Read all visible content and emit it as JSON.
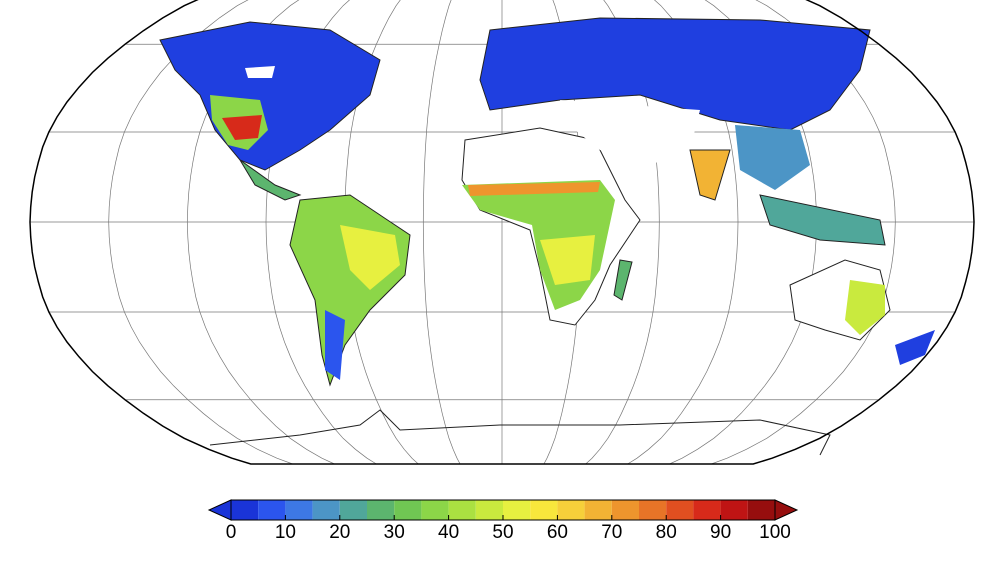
{
  "colorbar": {
    "levels": [
      0,
      5,
      10,
      15,
      20,
      25,
      30,
      35,
      40,
      45,
      50,
      55,
      60,
      65,
      70,
      75,
      80,
      85,
      90,
      95,
      100
    ],
    "colors": [
      "#1a34d8",
      "#2b55ee",
      "#3d78e4",
      "#4c95c6",
      "#50a79a",
      "#5cb56e",
      "#70c653",
      "#8cd648",
      "#aae141",
      "#c9ea3e",
      "#e7f040",
      "#f8e73c",
      "#f6d03a",
      "#f2b334",
      "#ee952d",
      "#e87427",
      "#e14f20",
      "#d72a1a",
      "#bf1414",
      "#960e0e"
    ],
    "ticks": [
      0,
      10,
      20,
      30,
      40,
      50,
      60,
      70,
      80,
      90,
      100
    ],
    "extend": "both"
  }
}
